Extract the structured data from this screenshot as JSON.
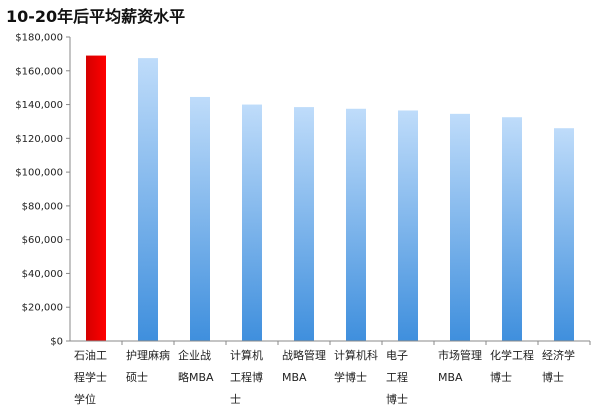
{
  "chart_data": {
    "type": "bar",
    "title": "10-20年后平均薪资水平",
    "xlabel": "",
    "ylabel": "",
    "ylim": [
      0,
      180000
    ],
    "yticks": [
      0,
      20000,
      40000,
      60000,
      80000,
      100000,
      120000,
      140000,
      160000,
      180000
    ],
    "ytick_labels": [
      "$0",
      "$20,000",
      "$40,000",
      "$60,000",
      "$80,000",
      "$100,000",
      "$120,000",
      "$140,000",
      "$160,000",
      "$180,000"
    ],
    "grid": false,
    "legend": "none",
    "categories": [
      [
        "石油工",
        "程学士",
        "学位"
      ],
      [
        "护理麻病",
        "硕士"
      ],
      [
        "企业战",
        "略MBA"
      ],
      [
        "计算机",
        "工程博",
        "士"
      ],
      [
        "战略管理",
        "MBA"
      ],
      [
        "计算机科",
        "学博士"
      ],
      [
        "电子",
        "工程",
        "博士"
      ],
      [
        "市场管理",
        "MBA"
      ],
      [
        "化学工程",
        "博士"
      ],
      [
        "经济学",
        "博士"
      ]
    ],
    "values": [
      169000,
      167500,
      144500,
      140000,
      138500,
      137500,
      136500,
      134500,
      132500,
      126000
    ],
    "colors": {
      "highlight": "#ff0000",
      "highlight_dark": "#d40000",
      "bar_top": "#bfdcfa",
      "bar_bottom": "#3f8fdd",
      "axis": "#888888"
    },
    "highlight_index": 0
  }
}
